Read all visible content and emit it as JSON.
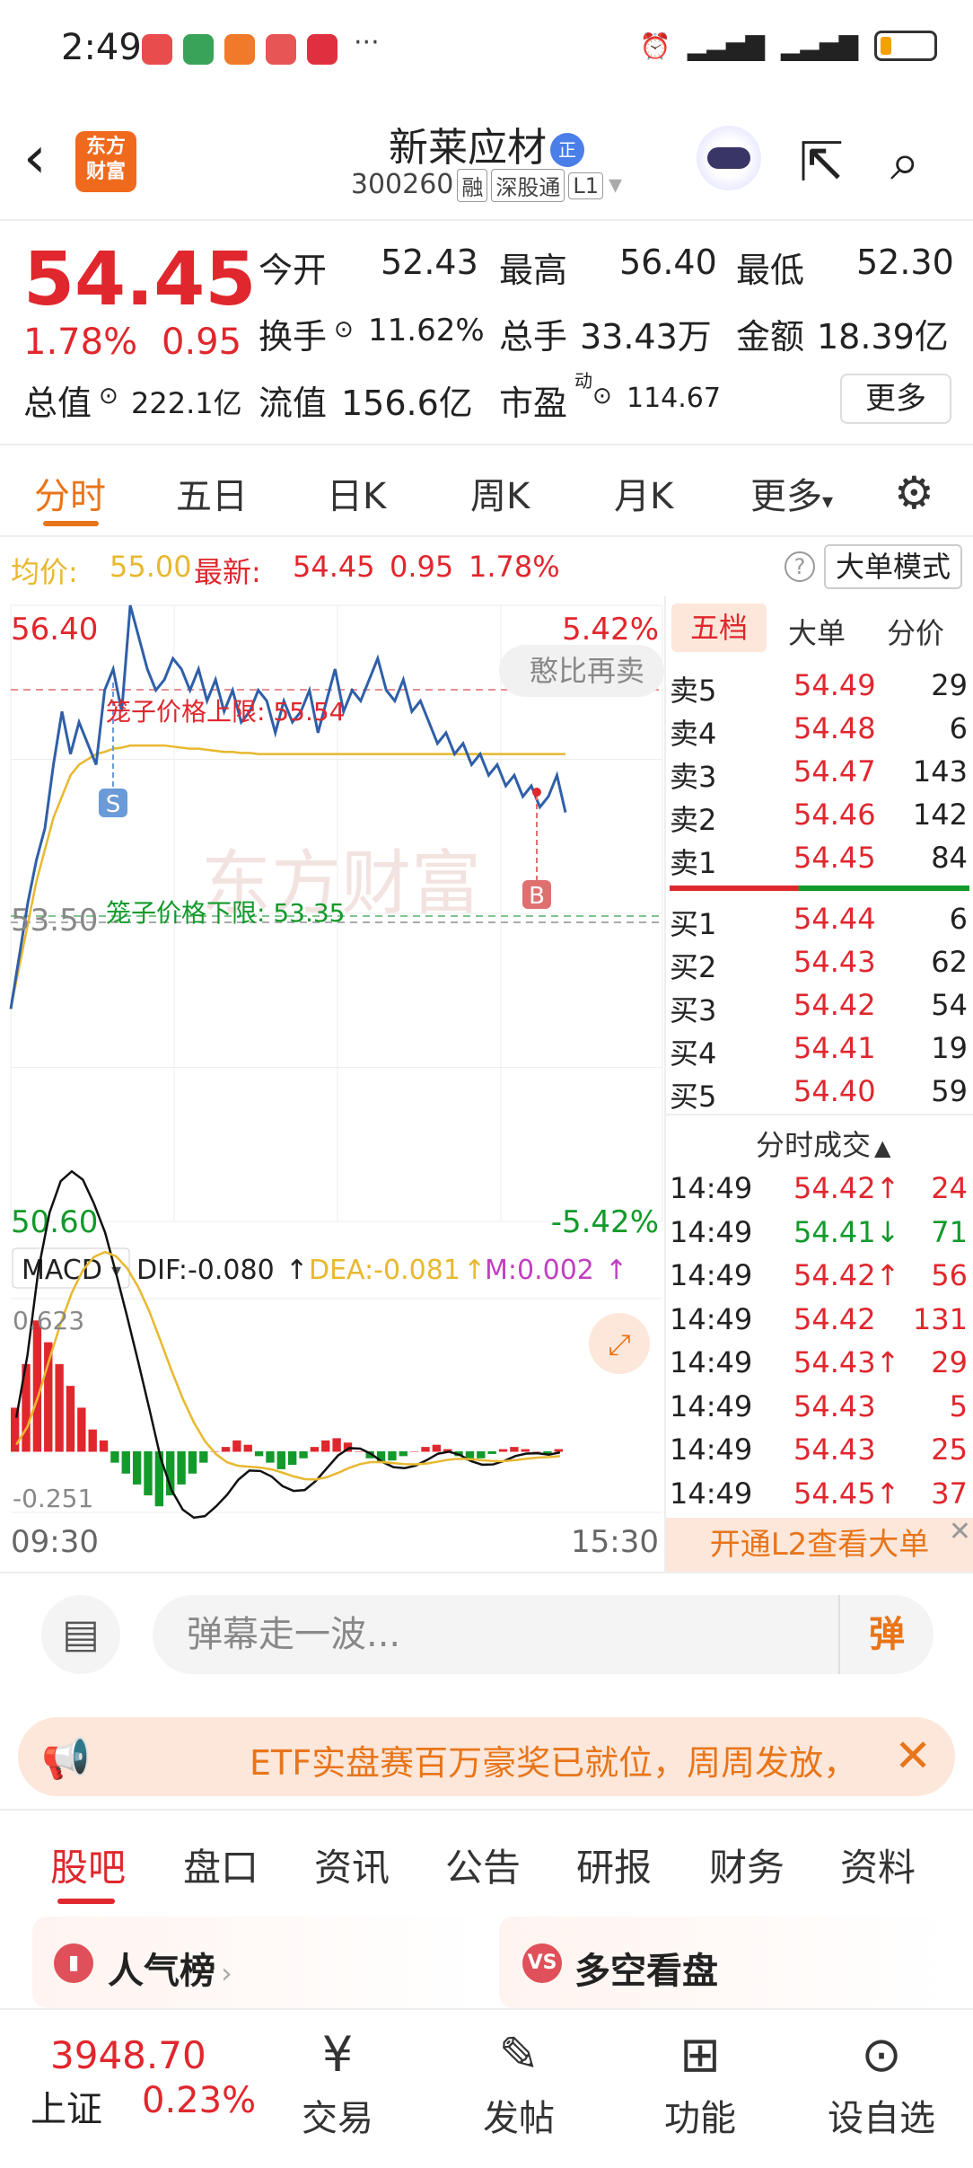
{
  "status_bar": {
    "time": "2:49",
    "more": "···"
  },
  "header": {
    "logo": "东方财富",
    "stock_name": "新莱应材",
    "badge": "正",
    "code": "300260",
    "tags": [
      "融",
      "深股通",
      "L1"
    ]
  },
  "quote": {
    "price": "54.45",
    "change_pct": "1.78%",
    "change": "0.95",
    "open_label": "今开",
    "open": "52.43",
    "high_label": "最高",
    "high": "56.40",
    "low_label": "最低",
    "low": "52.30",
    "turnover_label": "换手",
    "turnover": "11.62%",
    "volume_label": "总手",
    "volume": "33.43万",
    "amount_label": "金额",
    "amount": "18.39亿",
    "mktcap_label": "总值",
    "mktcap": "222.1亿",
    "float_label": "流值",
    "float": "156.6亿",
    "pe_label": "市盈",
    "pe_sup": "动",
    "pe": "114.67",
    "more_label": "更多"
  },
  "k_tabs": [
    "分时",
    "五日",
    "日K",
    "周K",
    "月K",
    "更多"
  ],
  "avg_row": {
    "avg_label": "均价:",
    "avg": "55.00",
    "latest_label": "最新:",
    "latest": "54.45",
    "change": "0.95",
    "pct": "1.78%",
    "mode": "大单模式"
  },
  "chart": {
    "y_top": "56.40",
    "y_top_pct": "5.42%",
    "y_mid": "53.50",
    "y_bottom": "50.60",
    "y_bottom_pct": "-5.42%",
    "upper_limit": "笼子价格上限: 55.54",
    "lower_limit": "笼子价格下限: 53.35",
    "bubble": "憨比再卖",
    "watermark": "东方财富",
    "sell_marker": "S",
    "buy_marker": "B",
    "macd_label": "MACD",
    "dif": "DIF:-0.080",
    "dea": "DEA:-0.081",
    "m": "M:0.002",
    "macd_top": "0.623",
    "macd_bottom": "-0.251",
    "t_start": "09:30",
    "t_end": "15:30"
  },
  "chart_data": {
    "type": "line",
    "price_series": [
      52.6,
      53.1,
      53.6,
      54.0,
      54.3,
      54.9,
      55.4,
      55.0,
      55.3,
      55.1,
      54.9,
      55.6,
      55.8,
      55.4,
      56.4,
      56.1,
      55.8,
      55.6,
      55.7,
      55.9,
      55.8,
      55.6,
      55.8,
      55.5,
      55.7,
      55.4,
      55.6,
      55.3,
      55.4,
      55.6,
      55.5,
      55.2,
      55.5,
      55.3,
      55.4,
      55.6,
      55.2,
      55.5,
      55.8,
      55.4,
      55.6,
      55.5,
      55.7,
      55.9,
      55.6,
      55.5,
      55.7,
      55.4,
      55.5,
      55.3,
      55.1,
      55.2,
      55.0,
      55.1,
      54.9,
      55.0,
      54.8,
      54.9,
      54.7,
      54.8,
      54.6,
      54.7,
      54.5,
      54.6,
      54.8,
      54.45
    ],
    "avg_series": [
      52.6,
      53.0,
      53.4,
      53.8,
      54.1,
      54.4,
      54.6,
      54.8,
      54.9,
      54.95,
      55.0,
      55.02,
      55.05,
      55.06,
      55.08,
      55.08,
      55.08,
      55.08,
      55.08,
      55.07,
      55.06,
      55.05,
      55.05,
      55.04,
      55.03,
      55.02,
      55.02,
      55.01,
      55.01,
      55.0,
      55.0,
      55.0,
      55.0,
      55.0,
      55.0,
      55.0,
      55.0,
      55.0,
      55.0,
      55.0,
      55.0,
      55.0,
      55.0,
      55.0,
      55.0,
      55.0,
      55.0,
      55.0,
      55.0,
      55.0,
      55.0,
      55.0,
      55.0,
      55.0,
      55.0,
      55.0,
      55.0,
      55.0,
      55.0,
      55.0,
      55.0,
      55.0,
      55.0,
      55.0,
      55.0,
      55.0
    ],
    "ylim": [
      50.6,
      56.4
    ],
    "macd_hist": [
      0.2,
      0.4,
      0.6,
      0.5,
      0.4,
      0.3,
      0.2,
      0.1,
      0.05,
      -0.05,
      -0.1,
      -0.15,
      -0.2,
      -0.25,
      -0.2,
      -0.15,
      -0.1,
      -0.05,
      0.0,
      0.02,
      0.05,
      0.03,
      -0.02,
      -0.05,
      -0.08,
      -0.06,
      -0.03,
      0.02,
      0.05,
      0.06,
      0.04,
      0.0,
      -0.03,
      -0.05,
      -0.04,
      -0.02,
      0.0,
      0.02,
      0.03,
      0.01,
      -0.02,
      -0.04,
      -0.03,
      -0.01,
      0.01,
      0.02,
      0.01,
      0.0,
      -0.01,
      0.01
    ]
  },
  "book": {
    "tabs": [
      "五档",
      "大单",
      "分价"
    ],
    "asks": [
      {
        "label": "卖5",
        "price": "54.49",
        "vol": "29"
      },
      {
        "label": "卖4",
        "price": "54.48",
        "vol": "6"
      },
      {
        "label": "卖3",
        "price": "54.47",
        "vol": "143"
      },
      {
        "label": "卖2",
        "price": "54.46",
        "vol": "142"
      },
      {
        "label": "卖1",
        "price": "54.45",
        "vol": "84"
      }
    ],
    "bids": [
      {
        "label": "买1",
        "price": "54.44",
        "vol": "6"
      },
      {
        "label": "买2",
        "price": "54.43",
        "vol": "62"
      },
      {
        "label": "买3",
        "price": "54.42",
        "vol": "54"
      },
      {
        "label": "买4",
        "price": "54.41",
        "vol": "19"
      },
      {
        "label": "买5",
        "price": "54.40",
        "vol": "59"
      }
    ],
    "trades_title": "分时成交",
    "trades": [
      {
        "time": "14:49",
        "price": "54.42↑",
        "vol": "24",
        "dir": "up"
      },
      {
        "time": "14:49",
        "price": "54.41↓",
        "vol": "71",
        "dir": "down"
      },
      {
        "time": "14:49",
        "price": "54.42↑",
        "vol": "56",
        "dir": "up"
      },
      {
        "time": "14:49",
        "price": "54.42",
        "vol": "131",
        "dir": "up"
      },
      {
        "time": "14:49",
        "price": "54.43↑",
        "vol": "29",
        "dir": "up"
      },
      {
        "time": "14:49",
        "price": "54.43",
        "vol": "5",
        "dir": "flat"
      },
      {
        "time": "14:49",
        "price": "54.43",
        "vol": "25",
        "dir": "flat"
      },
      {
        "time": "14:49",
        "price": "54.45↑",
        "vol": "37",
        "dir": "up"
      }
    ],
    "l2": "开通L2查看大单"
  },
  "danmaku": {
    "placeholder": "弹幕走一波...",
    "button": "弹"
  },
  "banner": {
    "text": "ETF实盘赛百万豪奖已就位，周周发放，"
  },
  "bottom_tabs": [
    "股吧",
    "盘口",
    "资讯",
    "公告",
    "研报",
    "财务",
    "资料"
  ],
  "cards": [
    {
      "title": "人气榜",
      "icon": "rank-icon"
    },
    {
      "title": "多空看盘",
      "icon": "vs-icon"
    }
  ],
  "nav": {
    "index_value": "3948.70",
    "index_name": "上证",
    "index_pct": "0.23%",
    "items": [
      "交易",
      "发帖",
      "功能",
      "设自选"
    ]
  },
  "colors": {
    "up": "#e0272d",
    "down": "#129a2b",
    "accent": "#e8751a",
    "price_line": "#2f5fa8",
    "avg_line": "#e8b830"
  }
}
